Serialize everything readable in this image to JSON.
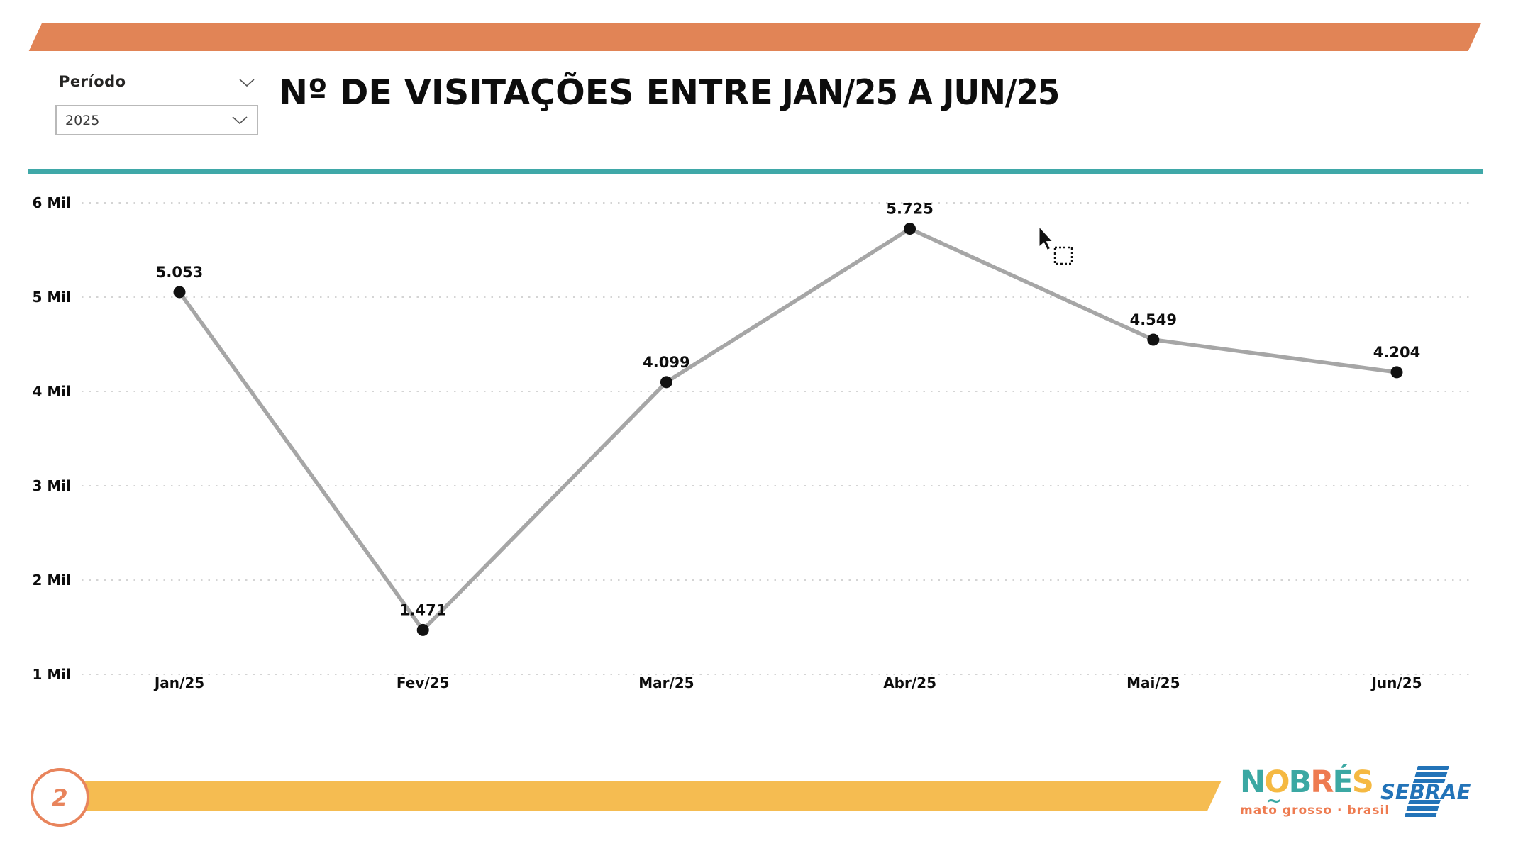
{
  "header": {
    "banner_color": "#E18456",
    "title_part1": "Nº DE VISITAÇÕES ENTRE",
    "title_part2": "JAN/25 A JUN/25"
  },
  "slicer": {
    "label": "Período",
    "value": "2025"
  },
  "divider_color": "#3FA8A8",
  "chart_data": {
    "type": "line",
    "title": "Nº DE VISITAÇÕES ENTRE JAN/25 A JUN/25",
    "categories": [
      "Jan/25",
      "Fev/25",
      "Mar/25",
      "Abr/25",
      "Mai/25",
      "Jun/25"
    ],
    "values": [
      5053,
      1471,
      4099,
      5725,
      4549,
      4204
    ],
    "data_labels": [
      "5.053",
      "1.471",
      "4.099",
      "5.725",
      "4.549",
      "4.204"
    ],
    "y_ticks": [
      "6 Mil",
      "5 Mil",
      "4 Mil",
      "3 Mil",
      "2 Mil",
      "1 Mil"
    ],
    "y_tick_values": [
      6000,
      5000,
      4000,
      3000,
      2000,
      1000
    ],
    "ylim": [
      1000,
      6000
    ],
    "grid": "horizontal-dotted",
    "legend": "none",
    "line_color": "#A6A6A6",
    "marker_color": "#111111",
    "label_color": "#0D0D0D",
    "grid_color": "#D4D4D4"
  },
  "footer": {
    "page_number": "2",
    "bar_color": "#F5BC51",
    "badge_color": "#E8845C",
    "nobres_logo": {
      "letters": [
        {
          "char": "N",
          "color": "#3BA8A3"
        },
        {
          "char": "O",
          "color": "#F5B942",
          "tilde": "~"
        },
        {
          "char": "B",
          "color": "#3BA8A3"
        },
        {
          "char": "R",
          "color": "#EE7B50"
        },
        {
          "char": "É",
          "color": "#3BA8A3"
        },
        {
          "char": "S",
          "color": "#F5B942"
        }
      ],
      "subtitle": "mato grosso · brasil",
      "subtitle_color": "#EE7B50"
    },
    "sebrae_logo": {
      "text": "SEBRAE",
      "color": "#2273B8"
    }
  }
}
